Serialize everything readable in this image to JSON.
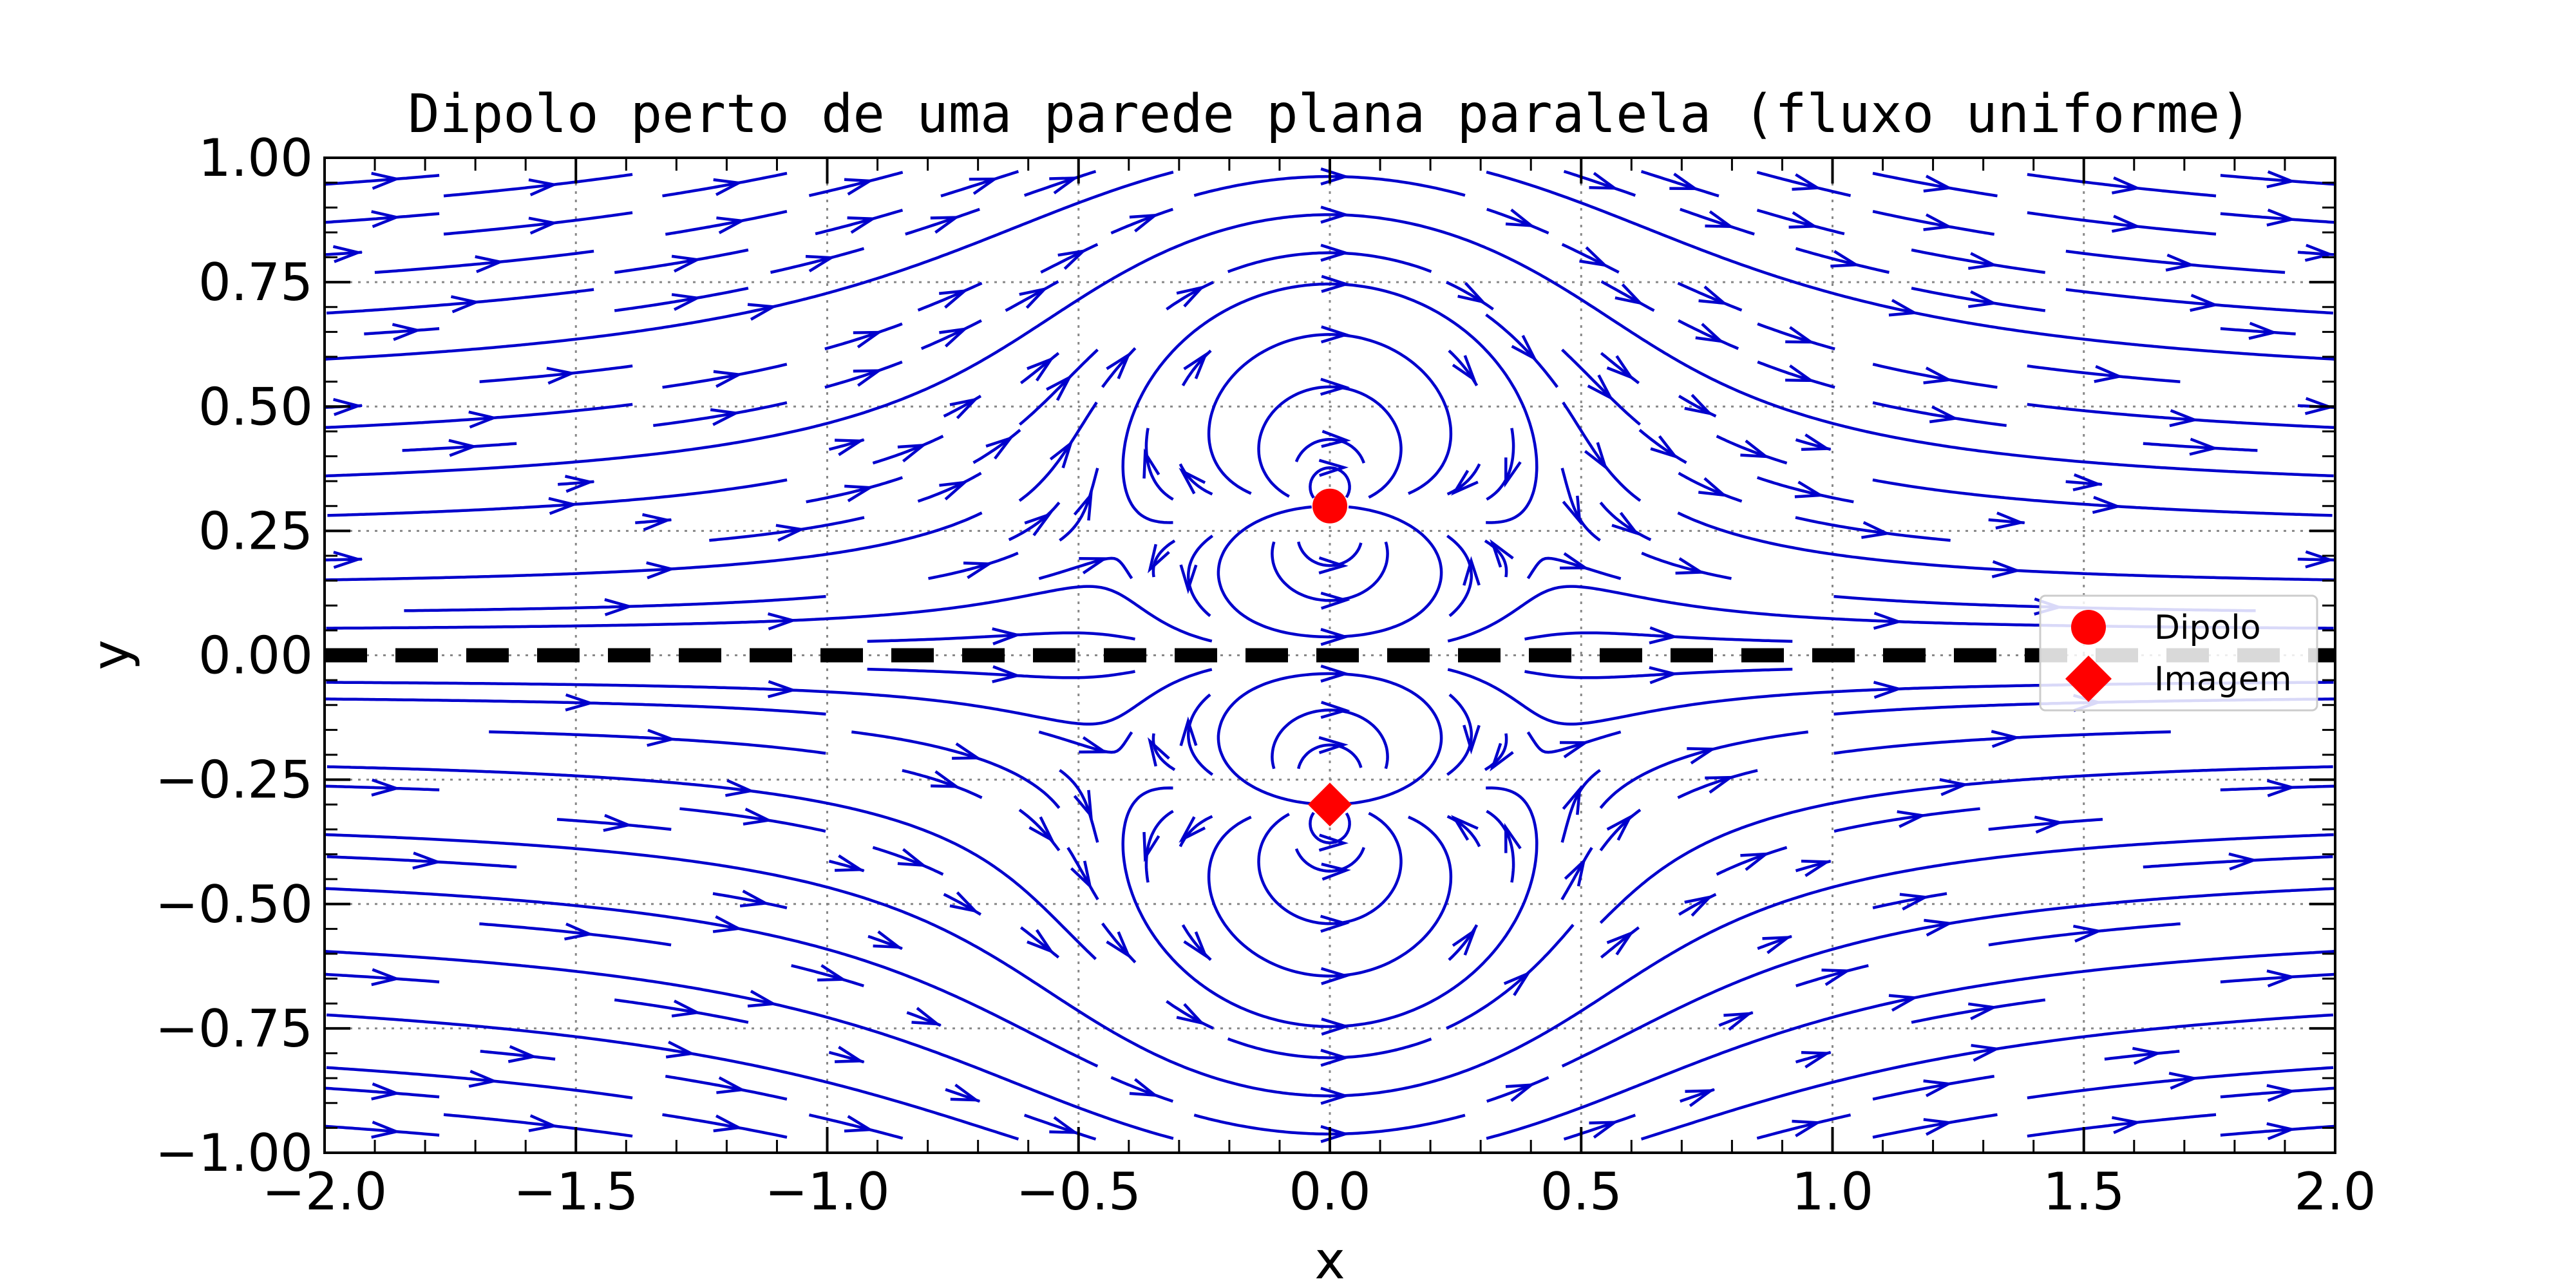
{
  "chart_data": {
    "type": "streamplot",
    "title": "Dipolo perto de uma parede plana paralela (fluxo uniforme)",
    "xlabel": "x",
    "ylabel": "y",
    "xlim": [
      -2.0,
      2.0
    ],
    "ylim": [
      -1.0,
      1.0
    ],
    "xticks": [
      -2.0,
      -1.5,
      -1.0,
      -0.5,
      0.0,
      0.5,
      1.0,
      1.5,
      2.0
    ],
    "xtick_labels": [
      "−2.0",
      "−1.5",
      "−1.0",
      "−0.5",
      "0.0",
      "0.5",
      "1.0",
      "1.5",
      "2.0"
    ],
    "yticks": [
      -1.0,
      -0.75,
      -0.5,
      -0.25,
      0.0,
      0.25,
      0.5,
      0.75,
      1.0
    ],
    "ytick_labels": [
      "−1.00",
      "−0.75",
      "−0.50",
      "−0.25",
      "0.00",
      "0.25",
      "0.50",
      "0.75",
      "1.00"
    ],
    "grid": true,
    "streamline_color": "#0000cc",
    "flow": {
      "uniform_speed": 1.0,
      "dipole_strength": 0.22,
      "dipole_position": [
        0.0,
        0.3
      ],
      "image_position": [
        0.0,
        -0.3
      ]
    },
    "wall": {
      "y": 0.0,
      "color": "#000000",
      "style": "dashed"
    },
    "markers": [
      {
        "name": "Dipolo",
        "x": 0.0,
        "y": 0.3,
        "shape": "circle",
        "color": "#ff0000"
      },
      {
        "name": "Imagem",
        "x": 0.0,
        "y": -0.3,
        "shape": "diamond",
        "color": "#ff0000"
      }
    ],
    "legend": {
      "placement": "center-right",
      "entries": [
        {
          "label": "Dipolo",
          "shape": "circle",
          "color": "#ff0000"
        },
        {
          "label": "Imagem",
          "shape": "diamond",
          "color": "#ff0000"
        }
      ]
    }
  }
}
